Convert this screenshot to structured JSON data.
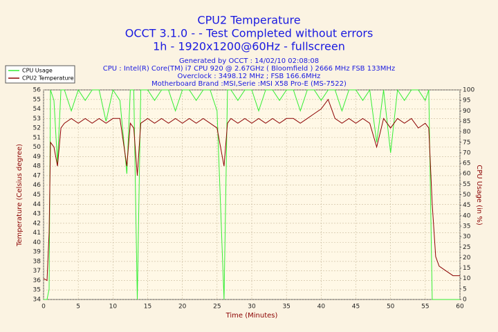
{
  "chart_data": {
    "type": "line",
    "title": "CPU2 Temperature",
    "title_lines": [
      "OCCT 3.1.0 -  - Test Completed without errors",
      "1h - 1920x1200@60Hz - fullscreen"
    ],
    "subtitle_lines": [
      "Generated by OCCT : 14/02/10 02:08:08",
      "CPU : Intel(R) Core(TM) i7 CPU 920 @ 2.67GHz ( Bloomfield ) 2666 MHz FSB 133MHz",
      "Overclock : 3498.12 MHz ; FSB 166.6MHz",
      "Motherboard Brand :MSI,Serie :MSI X58 Pro-E (MS-7522)"
    ],
    "x_label": "Time (Minutes)",
    "y_label": "Temperature (Celsius degree)",
    "y2_label": "CPU Usage (in %)",
    "x": [
      0,
      0.5,
      0.8,
      1,
      1.5,
      2,
      2.5,
      3,
      4,
      5,
      6,
      7,
      8,
      9,
      10,
      11,
      12,
      12.5,
      13,
      13.5,
      14,
      15,
      16,
      17,
      18,
      19,
      20,
      21,
      22,
      23,
      24,
      25,
      26,
      26.5,
      27,
      28,
      29,
      30,
      31,
      32,
      33,
      34,
      35,
      36,
      37,
      38,
      39,
      40,
      41,
      42,
      43,
      44,
      45,
      46,
      47,
      48,
      49,
      50,
      51,
      52,
      53,
      54,
      55,
      55.5,
      56,
      56.5,
      57,
      58,
      59,
      60
    ],
    "series": [
      {
        "name": "CPU Usage",
        "color": "#33ee33",
        "axis": "y2",
        "values": [
          0,
          0,
          5,
          100,
          95,
          65,
          100,
          100,
          90,
          100,
          95,
          100,
          100,
          85,
          100,
          95,
          60,
          100,
          100,
          0,
          100,
          100,
          95,
          100,
          100,
          90,
          100,
          100,
          95,
          100,
          100,
          90,
          0,
          100,
          100,
          95,
          100,
          100,
          90,
          100,
          100,
          95,
          100,
          100,
          90,
          100,
          100,
          95,
          100,
          100,
          90,
          100,
          100,
          95,
          100,
          75,
          100,
          70,
          100,
          95,
          100,
          100,
          95,
          100,
          0,
          0,
          0,
          0,
          0,
          0
        ]
      },
      {
        "name": "CPU2 Temperature",
        "color": "#8b0000",
        "values": [
          36.2,
          36,
          41,
          50.5,
          50,
          48,
          52,
          52.5,
          53,
          52.5,
          53,
          52.5,
          53,
          52.5,
          53,
          53,
          48,
          52.5,
          52,
          47,
          52.5,
          53,
          52.5,
          53,
          52.5,
          53,
          52.5,
          53,
          52.5,
          53,
          52.5,
          52,
          48,
          52.5,
          53,
          52.5,
          53,
          52.5,
          53,
          52.5,
          53,
          52.5,
          53,
          53,
          52.5,
          53,
          53.5,
          54,
          55,
          53,
          52.5,
          53,
          52.5,
          53,
          52.5,
          50,
          53,
          52,
          53,
          52.5,
          53,
          52,
          52.5,
          52,
          44,
          38.5,
          37.5,
          37,
          36.5,
          36.5
        ]
      }
    ],
    "xlim": [
      0,
      60
    ],
    "xticks": [
      0,
      5,
      10,
      15,
      20,
      25,
      30,
      35,
      40,
      45,
      50,
      55,
      60
    ],
    "ylim": [
      34,
      56
    ],
    "yticks": [
      34,
      35,
      36,
      37,
      38,
      39,
      40,
      41,
      42,
      43,
      44,
      45,
      46,
      47,
      48,
      49,
      50,
      51,
      52,
      53,
      54,
      55,
      56
    ],
    "y2lim": [
      0,
      100
    ],
    "y2ticks": [
      0,
      5,
      10,
      15,
      20,
      25,
      30,
      35,
      40,
      45,
      50,
      55,
      60,
      65,
      70,
      75,
      80,
      85,
      90,
      95,
      100
    ],
    "grid": true,
    "legend": "top-left"
  }
}
